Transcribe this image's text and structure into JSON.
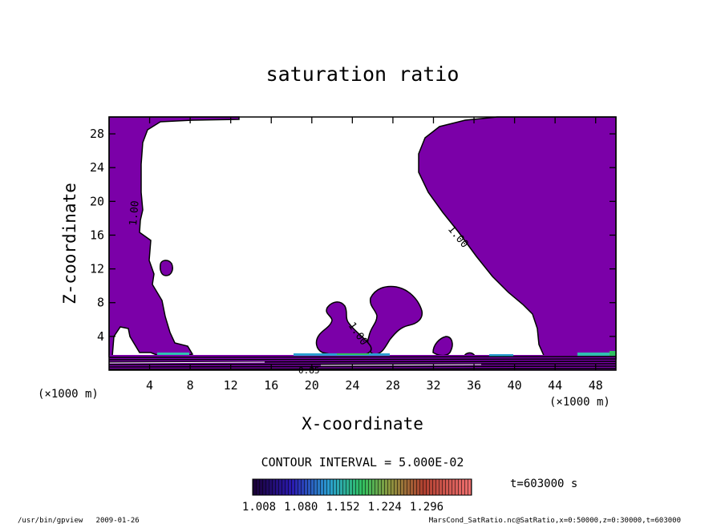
{
  "chart_data": {
    "type": "contour",
    "title": "saturation ratio",
    "xlabel": "X-coordinate",
    "ylabel": "Z-coordinate",
    "x_unit": "(×1000 m)",
    "z_unit": "(×1000 m)",
    "xlim": [
      0,
      50
    ],
    "ylim": [
      0,
      30
    ],
    "x_ticks": [
      4,
      8,
      12,
      16,
      20,
      24,
      28,
      32,
      36,
      40,
      44,
      48
    ],
    "y_ticks": [
      4,
      8,
      12,
      16,
      20,
      24,
      28
    ],
    "contour_interval_text": "CONTOUR INTERVAL = 5.000E-02",
    "time_text": "t=603000 s",
    "colorbar_ticks": [
      "1.008",
      "1.080",
      "1.152",
      "1.224",
      "1.296"
    ],
    "contour_labels": [
      "1.00",
      "1.00",
      "1.00"
    ],
    "bottom_label": "0.85",
    "fill_color": "#7b00a8",
    "footer_left": "/usr/bin/gpview   2009-01-26",
    "footer_right": "MarsCond_SatRatio.nc@SatRatio,x=0:50000,z=0:30000,t=603000"
  }
}
